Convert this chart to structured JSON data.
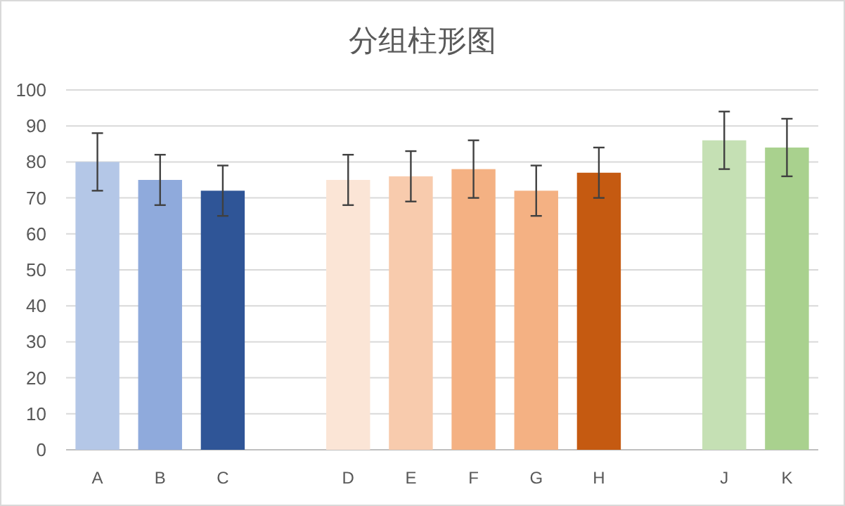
{
  "chart_data": {
    "type": "bar",
    "title": "分组柱形图",
    "categories": [
      "A",
      "B",
      "C",
      null,
      "D",
      "E",
      "F",
      "G",
      "H",
      null,
      "J",
      "K"
    ],
    "values": [
      80,
      75,
      72,
      null,
      75,
      76,
      78,
      72,
      77,
      null,
      86,
      84
    ],
    "errors": [
      8,
      7,
      7,
      null,
      7,
      7,
      8,
      7,
      7,
      null,
      8,
      8
    ],
    "colors": [
      "#b4c7e7",
      "#8faadc",
      "#2f5597",
      null,
      "#fbe5d6",
      "#f8cbad",
      "#f4b183",
      "#f4b183",
      "#c55a11",
      null,
      "#c5e0b4",
      "#a9d18e"
    ],
    "ylim": [
      0,
      100
    ],
    "yticks": [
      0,
      10,
      20,
      30,
      40,
      50,
      60,
      70,
      80,
      90,
      100
    ],
    "grid": "y"
  }
}
